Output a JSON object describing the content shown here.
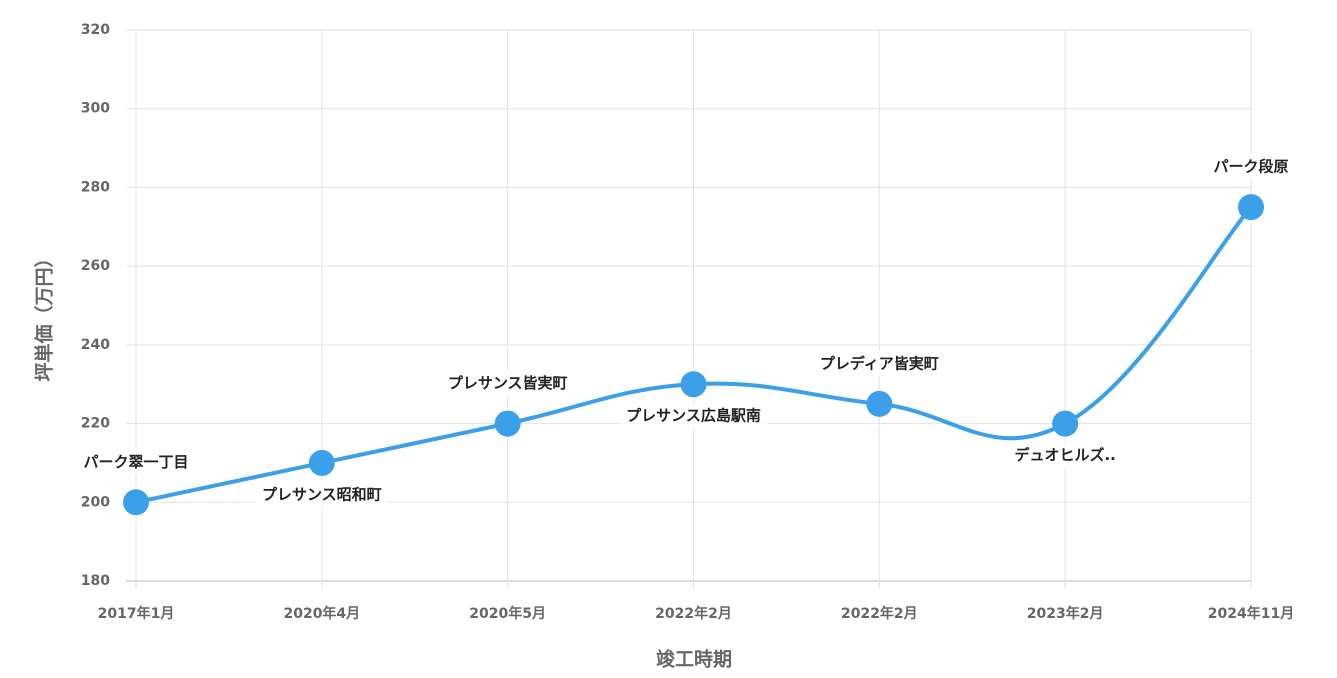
{
  "chart_data": {
    "type": "line",
    "x_label": "竣工時期",
    "y_label": "坪単価（万円）",
    "categories": [
      "2017年1月",
      "2020年4月",
      "2020年5月",
      "2022年2月",
      "2022年2月",
      "2023年2月",
      "2024年11月"
    ],
    "values": [
      200,
      210,
      220,
      230,
      225,
      220,
      275
    ],
    "point_labels": [
      "パーク翠一丁目",
      "プレサンス昭和町",
      "プレサンス皆実町",
      "プレサンス広島駅南",
      "プレディア皆実町",
      "デュオヒルズ..",
      "パーク段原"
    ],
    "color": "#3ba0e9",
    "ylim": [
      180,
      320
    ],
    "yticks": [
      180,
      200,
      220,
      240,
      260,
      280,
      300,
      320
    ],
    "grid": true
  }
}
